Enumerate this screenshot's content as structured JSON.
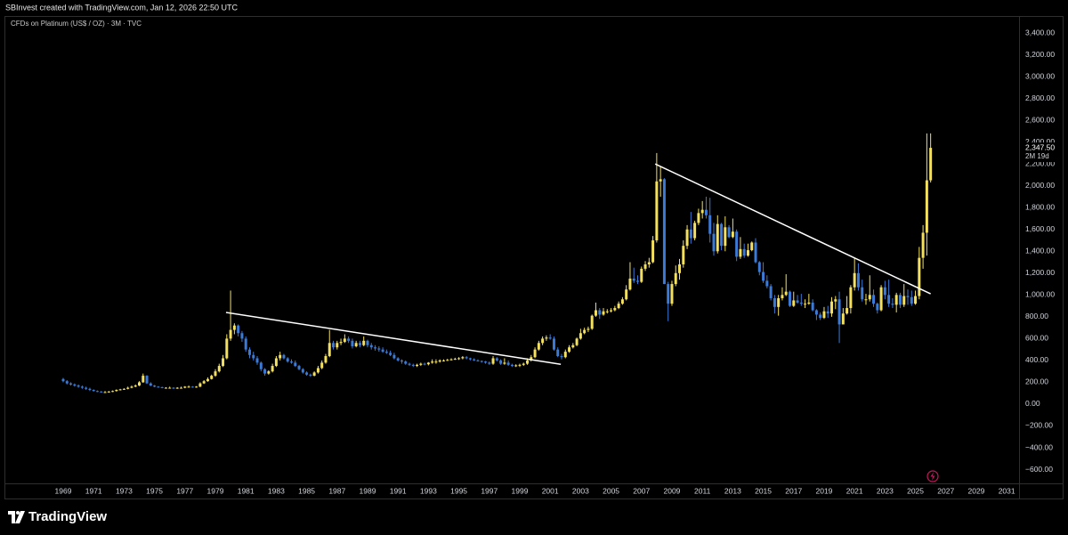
{
  "header": "SBInvest created with TradingView.com, Jan 12, 2026 22:50 UTC",
  "footer": "TradingView",
  "chart_data": {
    "type": "candlestick",
    "title": "CFDs on Platinum (US$ / OZ) · 3M · TVC",
    "up_color": "#f3e05e",
    "down_color": "#3b7ad6",
    "grid": false,
    "xlim": [
      1965.14,
      2031.81
    ],
    "xticks": [
      1969,
      1971,
      1973,
      1975,
      1977,
      1979,
      1981,
      1983,
      1985,
      1987,
      1989,
      1991,
      1993,
      1995,
      1997,
      1999,
      2001,
      2003,
      2005,
      2007,
      2009,
      2011,
      2013,
      2015,
      2017,
      2019,
      2021,
      2023,
      2025,
      2027,
      2029,
      2031
    ],
    "ylim": [
      -726,
      3555
    ],
    "yticks": [
      {
        "value": -600,
        "label": "−600.00"
      },
      {
        "value": -400,
        "label": "−400.00"
      },
      {
        "value": -200,
        "label": "−200.00"
      },
      {
        "value": 0,
        "label": "0.00"
      },
      {
        "value": 200,
        "label": "200.00"
      },
      {
        "value": 400,
        "label": "400.00"
      },
      {
        "value": 600,
        "label": "600.00"
      },
      {
        "value": 800,
        "label": "800.00"
      },
      {
        "value": 1000,
        "label": "1,000.00"
      },
      {
        "value": 1200,
        "label": "1,200.00"
      },
      {
        "value": 1400,
        "label": "1,400.00"
      },
      {
        "value": 1600,
        "label": "1,600.00"
      },
      {
        "value": 1800,
        "label": "1,800.00"
      },
      {
        "value": 2000,
        "label": "2,000.00"
      },
      {
        "value": 2200,
        "label": "2,200.00"
      },
      {
        "value": 2400,
        "label": "2,400.00"
      },
      {
        "value": 2600,
        "label": "2,600.00"
      },
      {
        "value": 2800,
        "label": "2,800.00"
      },
      {
        "value": 3000,
        "label": "3,000.00"
      },
      {
        "value": 3200,
        "label": "3,200.00"
      },
      {
        "value": 3400,
        "label": "3,400.00"
      }
    ],
    "last_price": {
      "value": 2347.5,
      "label": "2,347.50"
    },
    "countdown": "2M 19d",
    "trendlines": [
      {
        "x": [
          1979.7,
          2001.7
        ],
        "y": [
          840,
          365
        ]
      },
      {
        "x": [
          2007.9,
          2026.0
        ],
        "y": [
          2200,
          1010
        ]
      }
    ],
    "x": [
      1969,
      1969.25,
      1969.5,
      1969.75,
      1970,
      1970.25,
      1970.5,
      1970.75,
      1971,
      1971.25,
      1971.5,
      1971.75,
      1972,
      1972.25,
      1972.5,
      1972.75,
      1973,
      1973.25,
      1973.5,
      1973.75,
      1974,
      1974.25,
      1974.5,
      1974.75,
      1975,
      1975.25,
      1975.5,
      1975.75,
      1976,
      1976.25,
      1976.5,
      1976.75,
      1977,
      1977.25,
      1977.5,
      1977.75,
      1978,
      1978.25,
      1978.5,
      1978.75,
      1979,
      1979.25,
      1979.5,
      1979.75,
      1980,
      1980.25,
      1980.5,
      1980.75,
      1981,
      1981.25,
      1981.5,
      1981.75,
      1982,
      1982.25,
      1982.5,
      1982.75,
      1983,
      1983.25,
      1983.5,
      1983.75,
      1984,
      1984.25,
      1984.5,
      1984.75,
      1985,
      1985.25,
      1985.5,
      1985.75,
      1986,
      1986.25,
      1986.5,
      1986.75,
      1987,
      1987.25,
      1987.5,
      1987.75,
      1988,
      1988.25,
      1988.5,
      1988.75,
      1989,
      1989.25,
      1989.5,
      1989.75,
      1990,
      1990.25,
      1990.5,
      1990.75,
      1991,
      1991.25,
      1991.5,
      1991.75,
      1992,
      1992.25,
      1992.5,
      1992.75,
      1993,
      1993.25,
      1993.5,
      1993.75,
      1994,
      1994.25,
      1994.5,
      1994.75,
      1995,
      1995.25,
      1995.5,
      1995.75,
      1996,
      1996.25,
      1996.5,
      1996.75,
      1997,
      1997.25,
      1997.5,
      1997.75,
      1998,
      1998.25,
      1998.5,
      1998.75,
      1999,
      1999.25,
      1999.5,
      1999.75,
      2000,
      2000.25,
      2000.5,
      2000.75,
      2001,
      2001.25,
      2001.5,
      2001.75,
      2002,
      2002.25,
      2002.5,
      2002.75,
      2003,
      2003.25,
      2003.5,
      2003.75,
      2004,
      2004.25,
      2004.5,
      2004.75,
      2005,
      2005.25,
      2005.5,
      2005.75,
      2006,
      2006.25,
      2006.5,
      2006.75,
      2007,
      2007.25,
      2007.5,
      2007.75,
      2008,
      2008.25,
      2008.5,
      2008.75,
      2009,
      2009.25,
      2009.5,
      2009.75,
      2010,
      2010.25,
      2010.5,
      2010.75,
      2011,
      2011.25,
      2011.5,
      2011.75,
      2012,
      2012.25,
      2012.5,
      2012.75,
      2013,
      2013.25,
      2013.5,
      2013.75,
      2014,
      2014.25,
      2014.5,
      2014.75,
      2015,
      2015.25,
      2015.5,
      2015.75,
      2016,
      2016.25,
      2016.5,
      2016.75,
      2017,
      2017.25,
      2017.5,
      2017.75,
      2018,
      2018.25,
      2018.5,
      2018.75,
      2019,
      2019.25,
      2019.5,
      2019.75,
      2020,
      2020.25,
      2020.5,
      2020.75,
      2021,
      2021.25,
      2021.5,
      2021.75,
      2022,
      2022.25,
      2022.5,
      2022.75,
      2023,
      2023.25,
      2023.5,
      2023.75,
      2024,
      2024.25,
      2024.5,
      2024.75,
      2025,
      2025.25,
      2025.5,
      2025.75,
      2026
    ],
    "open": [
      230,
      210,
      190,
      180,
      170,
      160,
      150,
      140,
      130,
      120,
      115,
      110,
      110,
      115,
      120,
      130,
      135,
      140,
      150,
      160,
      170,
      200,
      260,
      190,
      170,
      160,
      155,
      150,
      150,
      150,
      145,
      150,
      150,
      160,
      160,
      155,
      160,
      190,
      210,
      230,
      260,
      300,
      350,
      420,
      600,
      680,
      720,
      650,
      600,
      500,
      450,
      420,
      380,
      320,
      280,
      300,
      350,
      420,
      450,
      420,
      390,
      380,
      350,
      320,
      290,
      270,
      260,
      290,
      330,
      380,
      440,
      560,
      520,
      560,
      570,
      600,
      580,
      530,
      560,
      540,
      580,
      540,
      520,
      510,
      500,
      480,
      470,
      450,
      420,
      400,
      390,
      370,
      360,
      350,
      360,
      370,
      365,
      380,
      390,
      390,
      400,
      400,
      405,
      410,
      415,
      420,
      430,
      420,
      410,
      400,
      395,
      390,
      380,
      370,
      420,
      400,
      370,
      380,
      360,
      350,
      355,
      360,
      370,
      400,
      430,
      500,
      560,
      600,
      610,
      600,
      500,
      440,
      430,
      480,
      520,
      540,
      600,
      650,
      680,
      690,
      810,
      860,
      820,
      850,
      850,
      860,
      880,
      920,
      960,
      1050,
      1150,
      1130,
      1120,
      1240,
      1280,
      1300,
      1500,
      2040,
      2060,
      1100,
      920,
      1100,
      1200,
      1280,
      1450,
      1600,
      1520,
      1660,
      1750,
      1780,
      1730,
      1560,
      1400,
      1650,
      1450,
      1620,
      1530,
      1580,
      1350,
      1420,
      1360,
      1410,
      1480,
      1300,
      1210,
      1130,
      1080,
      970,
      890,
      970,
      1000,
      1030,
      900,
      950,
      930,
      920,
      920,
      930,
      860,
      820,
      790,
      850,
      830,
      940,
      960,
      730,
      830,
      880,
      1070,
      1200,
      1070,
      960,
      960,
      1000,
      920,
      860,
      1070,
      1000,
      920,
      910,
      1000,
      910,
      990,
      980,
      920,
      990,
      1340,
      1570,
      2050
    ],
    "high": [
      240,
      220,
      200,
      190,
      180,
      170,
      160,
      150,
      135,
      125,
      120,
      120,
      120,
      125,
      135,
      140,
      145,
      160,
      170,
      180,
      210,
      280,
      265,
      200,
      175,
      165,
      160,
      155,
      160,
      155,
      155,
      160,
      165,
      170,
      165,
      165,
      200,
      220,
      245,
      270,
      320,
      370,
      450,
      640,
      1040,
      740,
      730,
      670,
      620,
      520,
      480,
      440,
      390,
      330,
      310,
      370,
      440,
      480,
      460,
      430,
      410,
      400,
      360,
      330,
      300,
      280,
      300,
      350,
      400,
      460,
      680,
      580,
      580,
      600,
      640,
      620,
      600,
      580,
      580,
      620,
      590,
      560,
      540,
      530,
      520,
      500,
      490,
      470,
      430,
      410,
      400,
      380,
      370,
      370,
      380,
      380,
      385,
      410,
      410,
      410,
      410,
      415,
      420,
      425,
      430,
      440,
      440,
      425,
      420,
      410,
      400,
      395,
      390,
      440,
      430,
      410,
      420,
      400,
      370,
      365,
      370,
      380,
      420,
      450,
      520,
      580,
      620,
      630,
      640,
      620,
      520,
      460,
      500,
      540,
      560,
      610,
      690,
      700,
      710,
      820,
      930,
      880,
      880,
      870,
      880,
      900,
      940,
      980,
      1090,
      1300,
      1250,
      1180,
      1260,
      1310,
      1340,
      1540,
      2300,
      2180,
      2070,
      1120,
      1130,
      1270,
      1330,
      1500,
      1640,
      1760,
      1680,
      1790,
      1860,
      1900,
      1890,
      1660,
      1730,
      1660,
      1720,
      1640,
      1700,
      1600,
      1530,
      1470,
      1470,
      1490,
      1520,
      1310,
      1300,
      1180,
      1100,
      1000,
      1000,
      1070,
      1190,
      1040,
      1030,
      1000,
      1010,
      960,
      1010,
      960,
      870,
      840,
      890,
      900,
      980,
      990,
      1030,
      880,
      990,
      1090,
      1340,
      1290,
      1140,
      1010,
      1180,
      1050,
      930,
      1090,
      1130,
      1140,
      970,
      1020,
      1020,
      1100,
      1050,
      1040,
      1040,
      1440,
      1640,
      2480,
      2480
    ],
    "low": [
      200,
      180,
      170,
      160,
      150,
      140,
      130,
      120,
      115,
      110,
      105,
      105,
      105,
      110,
      115,
      125,
      130,
      135,
      145,
      155,
      165,
      195,
      185,
      165,
      155,
      150,
      145,
      145,
      145,
      140,
      140,
      145,
      145,
      150,
      150,
      150,
      155,
      185,
      205,
      225,
      250,
      290,
      340,
      410,
      580,
      640,
      620,
      570,
      480,
      420,
      400,
      360,
      300,
      260,
      270,
      290,
      340,
      400,
      410,
      380,
      370,
      340,
      310,
      280,
      260,
      250,
      255,
      280,
      320,
      370,
      430,
      500,
      500,
      540,
      560,
      560,
      510,
      520,
      520,
      530,
      520,
      500,
      490,
      480,
      470,
      460,
      440,
      410,
      390,
      370,
      360,
      350,
      340,
      340,
      350,
      355,
      355,
      370,
      370,
      380,
      390,
      395,
      400,
      405,
      405,
      410,
      410,
      400,
      395,
      390,
      380,
      370,
      360,
      360,
      390,
      360,
      360,
      350,
      340,
      340,
      340,
      350,
      360,
      390,
      420,
      490,
      540,
      580,
      590,
      490,
      430,
      410,
      420,
      470,
      510,
      530,
      590,
      640,
      660,
      680,
      800,
      780,
      810,
      830,
      840,
      850,
      870,
      910,
      950,
      1040,
      1110,
      1100,
      1110,
      1220,
      1250,
      1290,
      1480,
      1900,
      1100,
      760,
      900,
      1080,
      1140,
      1250,
      1420,
      1470,
      1500,
      1640,
      1700,
      1700,
      1480,
      1360,
      1380,
      1410,
      1400,
      1520,
      1520,
      1310,
      1330,
      1340,
      1350,
      1400,
      1290,
      1180,
      1110,
      1060,
      950,
      830,
      810,
      950,
      990,
      890,
      890,
      920,
      900,
      880,
      910,
      850,
      770,
      770,
      780,
      790,
      800,
      870,
      560,
      730,
      820,
      830,
      1040,
      1040,
      940,
      910,
      940,
      890,
      830,
      850,
      960,
      890,
      880,
      840,
      880,
      890,
      910,
      900,
      910,
      960,
      1240,
      1360,
      2030
    ],
    "close": [
      210,
      190,
      180,
      170,
      160,
      150,
      140,
      130,
      120,
      115,
      110,
      110,
      115,
      120,
      130,
      135,
      140,
      150,
      160,
      170,
      200,
      260,
      190,
      170,
      160,
      155,
      150,
      150,
      150,
      145,
      150,
      150,
      160,
      160,
      155,
      160,
      190,
      210,
      230,
      260,
      300,
      350,
      420,
      600,
      680,
      720,
      650,
      600,
      500,
      450,
      420,
      380,
      320,
      280,
      300,
      350,
      420,
      450,
      420,
      390,
      380,
      350,
      320,
      290,
      270,
      260,
      290,
      330,
      380,
      440,
      560,
      520,
      560,
      570,
      600,
      580,
      530,
      560,
      540,
      580,
      540,
      520,
      510,
      500,
      480,
      470,
      450,
      420,
      400,
      390,
      370,
      360,
      350,
      360,
      370,
      365,
      380,
      390,
      390,
      400,
      400,
      405,
      410,
      415,
      420,
      430,
      420,
      410,
      400,
      395,
      390,
      380,
      370,
      420,
      400,
      370,
      380,
      360,
      350,
      355,
      360,
      370,
      400,
      430,
      500,
      560,
      600,
      610,
      600,
      500,
      440,
      430,
      480,
      520,
      540,
      600,
      650,
      680,
      690,
      810,
      860,
      820,
      850,
      850,
      860,
      880,
      920,
      960,
      1050,
      1150,
      1130,
      1120,
      1240,
      1280,
      1300,
      1500,
      2040,
      2060,
      1100,
      920,
      1100,
      1200,
      1280,
      1450,
      1600,
      1520,
      1660,
      1750,
      1780,
      1730,
      1560,
      1400,
      1650,
      1450,
      1620,
      1530,
      1580,
      1350,
      1420,
      1360,
      1410,
      1480,
      1300,
      1210,
      1130,
      1080,
      970,
      890,
      970,
      1000,
      1030,
      900,
      950,
      930,
      920,
      920,
      930,
      860,
      820,
      790,
      850,
      830,
      940,
      960,
      730,
      830,
      880,
      1070,
      1200,
      1070,
      960,
      960,
      1000,
      920,
      860,
      1070,
      1000,
      920,
      910,
      1000,
      910,
      990,
      980,
      920,
      990,
      1340,
      1570,
      2050,
      2347.5
    ]
  }
}
